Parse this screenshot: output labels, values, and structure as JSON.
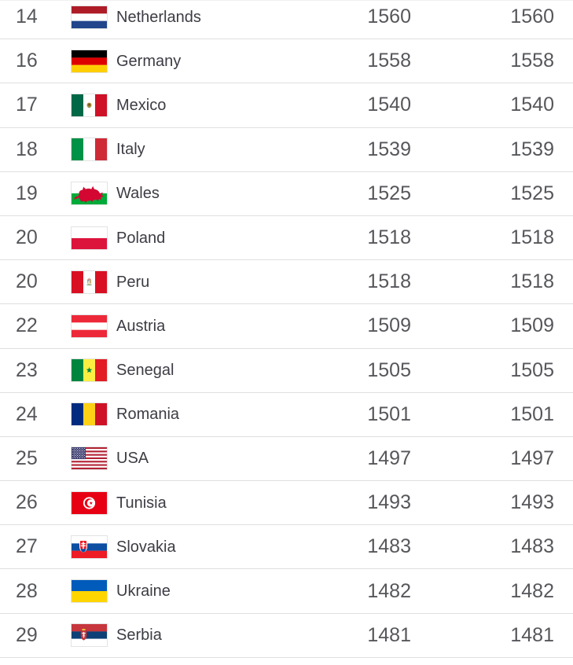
{
  "colors": {
    "rank_text": "#56575b",
    "country_text": "#3c3c44",
    "points_text": "#56575b",
    "row_divider": "#dfdfdf",
    "background": "#ffffff"
  },
  "table": {
    "rows": [
      {
        "rank": "14",
        "flag": "netherlands",
        "flag_icon": "netherlands-flag-icon",
        "country": "Netherlands",
        "points": "1560",
        "prev_points": "1560"
      },
      {
        "rank": "16",
        "flag": "germany",
        "flag_icon": "germany-flag-icon",
        "country": "Germany",
        "points": "1558",
        "prev_points": "1558"
      },
      {
        "rank": "17",
        "flag": "mexico",
        "flag_icon": "mexico-flag-icon",
        "country": "Mexico",
        "points": "1540",
        "prev_points": "1540"
      },
      {
        "rank": "18",
        "flag": "italy",
        "flag_icon": "italy-flag-icon",
        "country": "Italy",
        "points": "1539",
        "prev_points": "1539"
      },
      {
        "rank": "19",
        "flag": "wales",
        "flag_icon": "wales-flag-icon",
        "country": "Wales",
        "points": "1525",
        "prev_points": "1525"
      },
      {
        "rank": "20",
        "flag": "poland",
        "flag_icon": "poland-flag-icon",
        "country": "Poland",
        "points": "1518",
        "prev_points": "1518"
      },
      {
        "rank": "20",
        "flag": "peru",
        "flag_icon": "peru-flag-icon",
        "country": "Peru",
        "points": "1518",
        "prev_points": "1518"
      },
      {
        "rank": "22",
        "flag": "austria",
        "flag_icon": "austria-flag-icon",
        "country": "Austria",
        "points": "1509",
        "prev_points": "1509"
      },
      {
        "rank": "23",
        "flag": "senegal",
        "flag_icon": "senegal-flag-icon",
        "country": "Senegal",
        "points": "1505",
        "prev_points": "1505"
      },
      {
        "rank": "24",
        "flag": "romania",
        "flag_icon": "romania-flag-icon",
        "country": "Romania",
        "points": "1501",
        "prev_points": "1501"
      },
      {
        "rank": "25",
        "flag": "usa",
        "flag_icon": "usa-flag-icon",
        "country": "USA",
        "points": "1497",
        "prev_points": "1497"
      },
      {
        "rank": "26",
        "flag": "tunisia",
        "flag_icon": "tunisia-flag-icon",
        "country": "Tunisia",
        "points": "1493",
        "prev_points": "1493"
      },
      {
        "rank": "27",
        "flag": "slovakia",
        "flag_icon": "slovakia-flag-icon",
        "country": "Slovakia",
        "points": "1483",
        "prev_points": "1483"
      },
      {
        "rank": "28",
        "flag": "ukraine",
        "flag_icon": "ukraine-flag-icon",
        "country": "Ukraine",
        "points": "1482",
        "prev_points": "1482"
      },
      {
        "rank": "29",
        "flag": "serbia",
        "flag_icon": "serbia-flag-icon",
        "country": "Serbia",
        "points": "1481",
        "prev_points": "1481"
      }
    ]
  }
}
